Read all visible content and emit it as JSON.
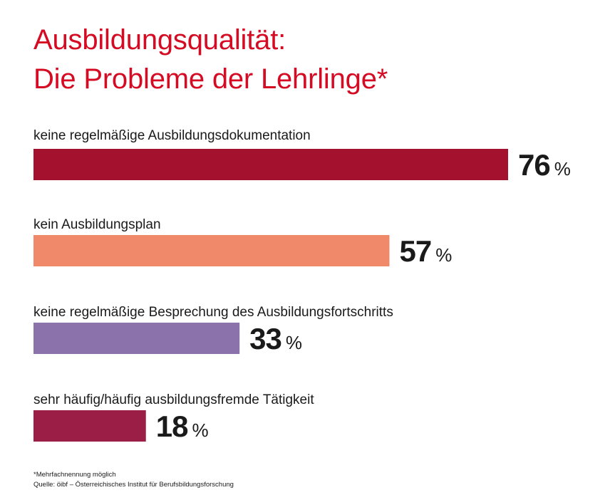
{
  "title_line1": "Ausbildungsqualität:",
  "title_line2": "Die Probleme der Lehrlinge*",
  "footnote": "*Mehrfachnennung möglich",
  "source": "Quelle: öibf – Österreichisches Institut für Berufsbildungsforschung",
  "chart_data": {
    "type": "bar",
    "orientation": "horizontal",
    "unit": "%",
    "categories": [
      "keine regelmäßige Ausbildungsdokumentation",
      "kein Ausbildungsplan",
      "keine regelmäßige Besprechung des Ausbildungsfortschritts",
      "sehr häufig/häufig ausbildungsfremde Tätigkeit"
    ],
    "values": [
      76,
      57,
      33,
      18
    ],
    "colors": [
      "#a3112f",
      "#f0896a",
      "#8c72aa",
      "#9b1e47"
    ],
    "xlim": [
      0,
      100
    ],
    "grid": false,
    "legend": "none"
  }
}
